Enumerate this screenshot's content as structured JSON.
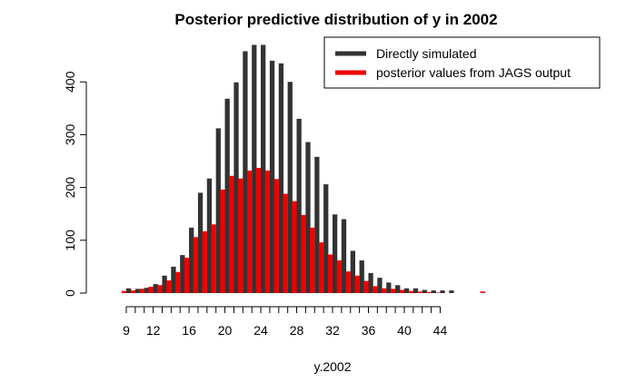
{
  "chart_data": {
    "type": "bar",
    "title": "Posterior predictive distribution of y in 2002",
    "xlabel": "y.2002",
    "ylabel": "",
    "ylim": [
      0,
      470
    ],
    "x_ticks": [
      9,
      12,
      16,
      20,
      24,
      28,
      32,
      36,
      40,
      44
    ],
    "y_ticks": [
      0,
      100,
      200,
      300,
      400
    ],
    "legend_position": "top-right",
    "series": [
      {
        "name": "Directly simulated",
        "color": "#333333",
        "points": [
          [
            9,
            9
          ],
          [
            10,
            8
          ],
          [
            11,
            10
          ],
          [
            12,
            17
          ],
          [
            13,
            33
          ],
          [
            14,
            50
          ],
          [
            15,
            72
          ],
          [
            16,
            124
          ],
          [
            17,
            190
          ],
          [
            18,
            217
          ],
          [
            19,
            312
          ],
          [
            20,
            368
          ],
          [
            21,
            399
          ],
          [
            22,
            458
          ],
          [
            23,
            470
          ],
          [
            24,
            470
          ],
          [
            25,
            440
          ],
          [
            26,
            435
          ],
          [
            27,
            400
          ],
          [
            28,
            330
          ],
          [
            29,
            286
          ],
          [
            30,
            258
          ],
          [
            31,
            206
          ],
          [
            32,
            149
          ],
          [
            33,
            140
          ],
          [
            34,
            80
          ],
          [
            35,
            62
          ],
          [
            36,
            38
          ],
          [
            37,
            29
          ],
          [
            38,
            20
          ],
          [
            39,
            15
          ],
          [
            40,
            9
          ],
          [
            41,
            9
          ],
          [
            42,
            6
          ],
          [
            43,
            5
          ],
          [
            44,
            5
          ],
          [
            45,
            5
          ]
        ]
      },
      {
        "name": "posterior values from JAGS output",
        "color": "#ee0000",
        "points": [
          [
            9,
            4
          ],
          [
            10,
            5
          ],
          [
            11,
            8
          ],
          [
            12,
            12
          ],
          [
            13,
            15
          ],
          [
            14,
            24
          ],
          [
            15,
            40
          ],
          [
            16,
            67
          ],
          [
            17,
            106
          ],
          [
            18,
            117
          ],
          [
            19,
            130
          ],
          [
            20,
            196
          ],
          [
            21,
            222
          ],
          [
            22,
            217
          ],
          [
            23,
            232
          ],
          [
            24,
            237
          ],
          [
            25,
            232
          ],
          [
            26,
            216
          ],
          [
            27,
            188
          ],
          [
            28,
            174
          ],
          [
            29,
            148
          ],
          [
            30,
            124
          ],
          [
            31,
            96
          ],
          [
            32,
            73
          ],
          [
            33,
            62
          ],
          [
            34,
            41
          ],
          [
            35,
            33
          ],
          [
            36,
            23
          ],
          [
            37,
            13
          ],
          [
            38,
            9
          ],
          [
            39,
            8
          ],
          [
            40,
            6
          ],
          [
            41,
            4
          ],
          [
            42,
            3
          ],
          [
            43,
            2
          ],
          [
            44,
            1
          ],
          [
            49,
            3
          ]
        ]
      }
    ]
  }
}
